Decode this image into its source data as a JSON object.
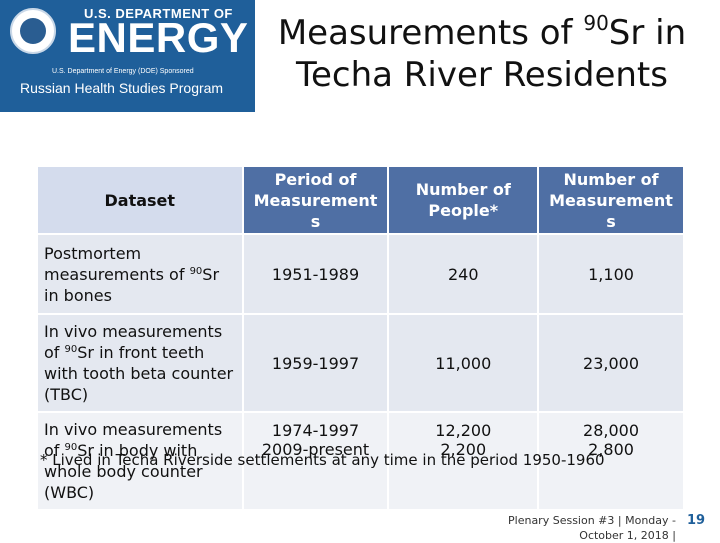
{
  "logo": {
    "dept": "U.S. DEPARTMENT OF",
    "energy": "ENERGY",
    "sponsored": "U.S. Department of Energy (DOE) Sponsored",
    "program": "Russian Health Studies Program"
  },
  "slide": {
    "title_part1": "Measurements of ",
    "title_sup": "90",
    "title_part2": "Sr in",
    "title_line2": "Techa River Residents"
  },
  "table": {
    "headers": [
      "Dataset",
      "Period of Measurement s",
      "Number of People*",
      "Number of Measurement s"
    ],
    "rows": [
      {
        "label_pre": "Postmortem measurements of ",
        "label_sup": "90",
        "label_post": "Sr in bones",
        "period": "1951-1989",
        "people": "240",
        "measurements": "1,100"
      },
      {
        "label_pre": "In vivo measurements of ",
        "label_sup": "90",
        "label_post": "Sr in front teeth with tooth beta counter (TBC)",
        "period": "1959-1997",
        "people": "11,000",
        "measurements": "23,000"
      },
      {
        "label_pre": "In vivo measurements of ",
        "label_sup": "90",
        "label_post": "Sr in body with whole body counter (WBC)",
        "period": "1974-1997",
        "period2": "2009-present",
        "people": "12,200",
        "people2": "2,200",
        "measurements": "28,000",
        "measurements2": "2,800"
      }
    ]
  },
  "footnote": {
    "text": "* Lived in Techa Riverside settlements at any time in the period 1950-1960"
  },
  "footer": {
    "line1": "Plenary Session #3 | Monday -",
    "line2": "October 1, 2018 |",
    "page": "19"
  },
  "colors": {
    "logo_bg": "#1f5f9a",
    "header_bg": "#4f6fa4",
    "cell_bg": "#e4e8f0"
  }
}
